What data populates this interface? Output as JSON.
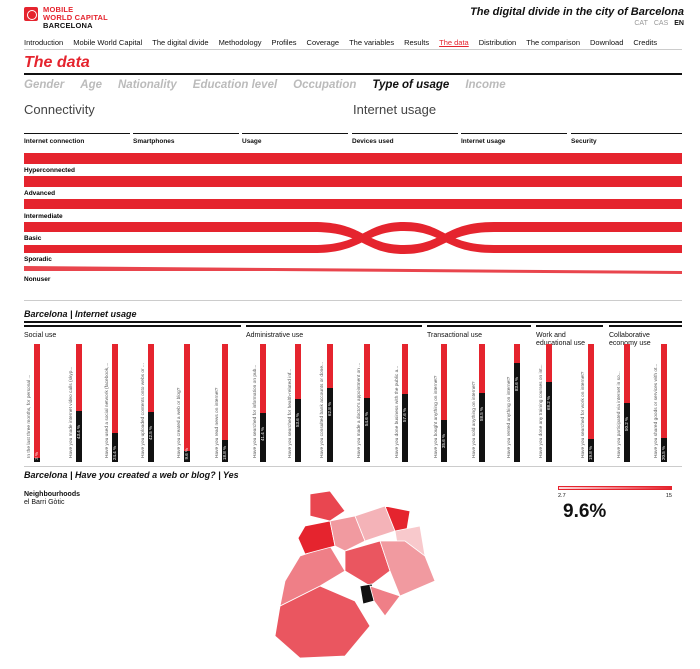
{
  "header": {
    "logo_line1": "MOBILE",
    "logo_line2": "WORLD CAPITAL",
    "logo_city": "BARCELONA",
    "site_title": "The digital divide in the city of Barcelona",
    "languages": [
      "CAT",
      "CAS",
      "EN"
    ],
    "active_language": "EN"
  },
  "nav": {
    "items": [
      "Introduction",
      "Mobile World Capital",
      "The digital divide",
      "Methodology",
      "Profiles",
      "Coverage",
      "The variables",
      "Results",
      "The data",
      "Distribution",
      "The comparison",
      "Download",
      "Credits"
    ],
    "active": "The data"
  },
  "page": {
    "title": "The data",
    "filters": [
      "Gender",
      "Age",
      "Nationality",
      "Education level",
      "Occupation",
      "Type of usage",
      "Income"
    ],
    "active_filter": "Type of usage"
  },
  "flow": {
    "heading_left": "Connectivity",
    "heading_right": "Internet usage",
    "columns": [
      "Internet connection",
      "Smartphones",
      "Usage",
      "Devices used",
      "Internet usage",
      "Security"
    ],
    "categories": [
      "Hyperconnected",
      "Advanced",
      "Intermediate",
      "Basic",
      "Sporadic",
      "Nonuser"
    ]
  },
  "usage": {
    "title": "Barcelona | Internet usage",
    "groups": [
      "Social use",
      "Administrative use",
      "Transactional use",
      "Work and educational use",
      "Collaborative economy use"
    ],
    "bars": [
      {
        "q": "In the last three months, for personal ...",
        "value": 3.0,
        "label": "3 %"
      },
      {
        "q": "Have you made internet video calls (skyp...",
        "value": 43.4,
        "label": "43.4 %"
      },
      {
        "q": "Have you used a social network (facebook,...",
        "value": 24.4,
        "label": "24.4 %"
      },
      {
        "q": "Have you uploaded contents onto webs or ...",
        "value": 42.5,
        "label": "42.5 %"
      },
      {
        "q": "Have you created a web or blog?",
        "value": 9.6,
        "label": "9.6 %"
      },
      {
        "q": "Have you read news on internet?",
        "value": 18.8,
        "label": "18.8 %"
      },
      {
        "q": "Have you searched for information on pub...",
        "value": 41.4,
        "label": "41.4 %"
      },
      {
        "q": "Have you searched for health-related inf...",
        "value": 53.6,
        "label": "53.6 %"
      },
      {
        "q": "Have you consulted bank accounts or done...",
        "value": 62.8,
        "label": "62.8 %"
      },
      {
        "q": "Have you made a doctor's appointment on ...",
        "value": 54.6,
        "label": "54.6 %"
      },
      {
        "q": "Have you done business with the public a...",
        "value": 57.6,
        "label": "57.6 %"
      },
      {
        "q": "Have you bought anything on internet?",
        "value": 35.6,
        "label": "35.6 %"
      },
      {
        "q": "Have you sold anything on internet?",
        "value": 58.5,
        "label": "58.5 %"
      },
      {
        "q": "Have you rented anything on internet?",
        "value": 83.6,
        "label": "83.6 %"
      },
      {
        "q": "Have you done any training courses on int...",
        "value": 68.2,
        "label": "68.2 %"
      },
      {
        "q": "Have you searched for work on internet?",
        "value": 19.8,
        "label": "19.8 %"
      },
      {
        "q": "Have you participated via internet in so...",
        "value": 50.2,
        "label": "50.2 %"
      },
      {
        "q": "Have you shared goods or services with ot...",
        "value": 20.5,
        "label": "20.5 %"
      }
    ]
  },
  "map": {
    "title": "Barcelona | Have you created a web or blog? | Yes",
    "neighbourhood_label": "Neighbourhoods",
    "neighbourhood": "el Barri Gòtic",
    "legend_min": "2.7",
    "legend_max": "15",
    "value": "9.6%",
    "accent": "#e5242e"
  }
}
